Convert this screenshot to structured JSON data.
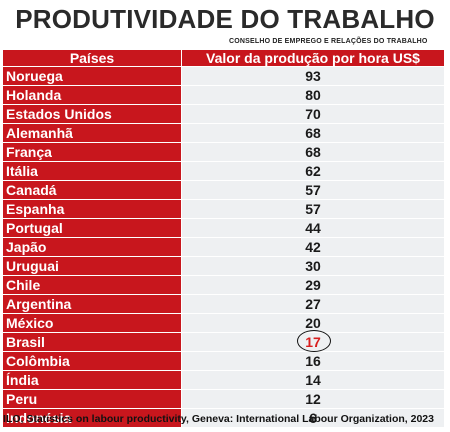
{
  "title": "PRODUTIVIDADE DO TRABALHO",
  "subtitle": "CONSELHO DE EMPREGO E RELAÇÕES DO TRABALHO",
  "table": {
    "headers": {
      "country": "Países",
      "value": "Valor da produção por hora US$"
    },
    "rows": [
      {
        "country": "Noruega",
        "value": "93"
      },
      {
        "country": "Holanda",
        "value": "80"
      },
      {
        "country": "Estados Unidos",
        "value": "70"
      },
      {
        "country": "Alemanhã",
        "value": "68"
      },
      {
        "country": "França",
        "value": "68"
      },
      {
        "country": "Itália",
        "value": "62"
      },
      {
        "country": "Canadá",
        "value": "57"
      },
      {
        "country": "Espanha",
        "value": "57"
      },
      {
        "country": "Portugal",
        "value": "44"
      },
      {
        "country": "Japão",
        "value": "42"
      },
      {
        "country": "Uruguai",
        "value": "30"
      },
      {
        "country": "Chile",
        "value": "29"
      },
      {
        "country": "Argentina",
        "value": "27"
      },
      {
        "country": "México",
        "value": "20"
      },
      {
        "country": "Brasil",
        "value": "17"
      },
      {
        "country": "Colômbia",
        "value": "16"
      },
      {
        "country": "Índia",
        "value": "14"
      },
      {
        "country": "Peru",
        "value": "12"
      },
      {
        "country": "Indonésia",
        "value": "6"
      }
    ],
    "highlight_row": "Brasil",
    "highlight_color": "#d81e1e",
    "header_color": "#c8161d"
  },
  "source": "ILO, Statistics on labour productivity, Geneva: International Labour Organization, 2023"
}
